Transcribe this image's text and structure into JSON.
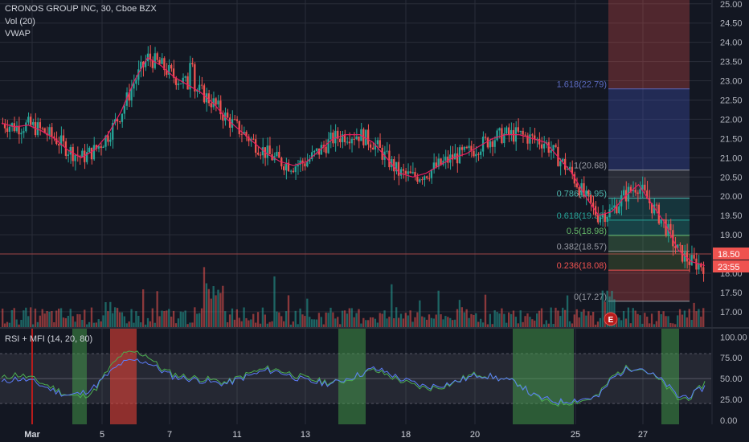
{
  "header": {
    "title": "CRONOS GROUP INC, 30, Cboe BZX",
    "vol": "Vol (20)",
    "vwap": "VWAP"
  },
  "indicator": {
    "label": "RSI + MFI (14, 20, 80)",
    "yticks": [
      "100.00",
      "75.00",
      "50.00",
      "25.00",
      "0.00"
    ]
  },
  "colors": {
    "background": "#131722",
    "up": "#26a69a",
    "down": "#ef5350",
    "vwap": "#e91e63",
    "grid": "#2a2e39",
    "axis_text": "#b2b5be"
  },
  "chart_data": [
    {
      "type": "candlestick",
      "title": "CRONOS GROUP INC, 30, Cboe BZX",
      "ylim": [
        16.6,
        25.1
      ],
      "yticks": [
        "25.00",
        "24.50",
        "24.00",
        "23.50",
        "23.00",
        "22.50",
        "22.00",
        "21.50",
        "21.00",
        "20.50",
        "20.00",
        "19.50",
        "19.00",
        "18.50",
        "18.00",
        "17.50",
        "17.00"
      ],
      "xticks": [
        "Mar",
        "5",
        "7",
        "11",
        "13",
        "18",
        "20",
        "25",
        "27"
      ],
      "series": [
        {
          "name": "VWAP",
          "values": [
            21.9,
            21.8,
            21.85,
            21.7,
            21.5,
            21.2,
            21.0,
            21.2,
            21.6,
            22.2,
            23.0,
            23.6,
            23.4,
            23.1,
            22.9,
            22.7,
            22.4,
            22.0,
            21.7,
            21.4,
            21.1,
            20.9,
            20.8,
            20.9,
            21.2,
            21.5,
            21.6,
            21.6,
            21.4,
            21.0,
            20.6,
            20.5,
            20.6,
            20.8,
            21.0,
            21.1,
            21.3,
            21.5,
            21.6,
            21.6,
            21.5,
            21.4,
            21.0,
            20.6,
            20.0,
            19.5,
            19.6,
            20.0,
            20.3,
            19.8,
            19.3,
            18.6,
            18.3,
            18.2
          ]
        }
      ],
      "current_price": "18.50",
      "countdown": "23:55",
      "fibonacci": [
        {
          "label": "1.618(22.79)",
          "value": 22.79,
          "color": "#5b6abf"
        },
        {
          "label": "1(20.68)",
          "value": 20.68,
          "color": "#9598a1"
        },
        {
          "label": "0.786(19.95)",
          "value": 19.95,
          "color": "#4db6ac"
        },
        {
          "label": "0.618(19.38)",
          "value": 19.38,
          "color": "#26a69a"
        },
        {
          "label": "0.5(18.98)",
          "value": 18.98,
          "color": "#66bb6a"
        },
        {
          "label": "0.382(18.57)",
          "value": 18.57,
          "color": "#9598a1"
        },
        {
          "label": "0.236(18.08)",
          "value": 18.08,
          "color": "#ef5350"
        },
        {
          "label": "0(17.27)",
          "value": 17.27,
          "color": "#9598a1"
        }
      ],
      "earnings_marker": "E"
    },
    {
      "type": "line",
      "title": "RSI + MFI (14, 20, 80)",
      "ylim": [
        -5,
        110
      ],
      "yticks": [
        100,
        75,
        50,
        25,
        0
      ],
      "series": [
        {
          "name": "RSI",
          "values": [
            45,
            50,
            48,
            42,
            35,
            30,
            32,
            40,
            55,
            68,
            72,
            70,
            60,
            52,
            50,
            48,
            45,
            44,
            50,
            55,
            60,
            58,
            52,
            47,
            45,
            44,
            50,
            55,
            62,
            58,
            50,
            45,
            40,
            42,
            45,
            50,
            55,
            52,
            48,
            44,
            30,
            25,
            22,
            24,
            26,
            28,
            50,
            60,
            65,
            55,
            45,
            28,
            30,
            40
          ]
        },
        {
          "name": "MFI",
          "values": [
            50,
            55,
            52,
            45,
            38,
            30,
            28,
            35,
            60,
            78,
            82,
            78,
            62,
            55,
            52,
            50,
            48,
            45,
            52,
            58,
            62,
            60,
            55,
            50,
            47,
            45,
            48,
            55,
            60,
            55,
            48,
            42,
            38,
            40,
            44,
            52,
            56,
            52,
            48,
            45,
            30,
            22,
            20,
            22,
            24,
            30,
            52,
            62,
            64,
            55,
            42,
            25,
            28,
            45
          ]
        }
      ],
      "highlights": [
        {
          "color": "green"
        },
        {
          "color": "red"
        },
        {
          "color": "green"
        },
        {
          "color": "green"
        },
        {
          "color": "green"
        }
      ]
    }
  ]
}
